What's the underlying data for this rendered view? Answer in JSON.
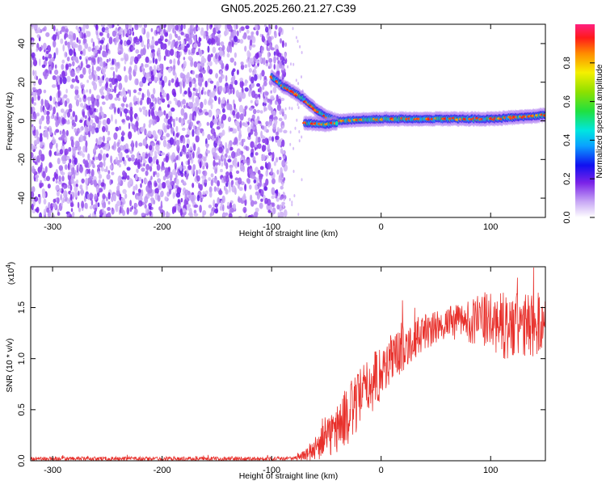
{
  "title": "GN05.2025.260.21.27.C39",
  "chart_data": [
    {
      "type": "heatmap",
      "xlabel": "Height of straight line (km)",
      "ylabel": "Frequency (Hz)",
      "xlim": [
        -320,
        150
      ],
      "ylim": [
        -50,
        50
      ],
      "x_ticks": [
        -300,
        -200,
        -100,
        0,
        100
      ],
      "y_ticks": [
        -40,
        -20,
        0,
        20,
        40
      ],
      "noise_region_x": [
        -320,
        -90
      ],
      "ridge": [
        {
          "x": -100,
          "f": 23
        },
        {
          "x": -90,
          "f": 18
        },
        {
          "x": -80,
          "f": 15
        },
        {
          "x": -70,
          "f": 11
        },
        {
          "x": -60,
          "f": 6
        },
        {
          "x": -50,
          "f": 2
        },
        {
          "x": -40,
          "f": 0
        },
        {
          "x": -20,
          "f": 0.5
        },
        {
          "x": 0,
          "f": 1
        },
        {
          "x": 50,
          "f": 1
        },
        {
          "x": 100,
          "f": 1
        },
        {
          "x": 130,
          "f": 2
        },
        {
          "x": 150,
          "f": 3
        }
      ],
      "lower_branch": [
        {
          "x": -70,
          "f": -1
        },
        {
          "x": -50,
          "f": -2
        },
        {
          "x": -40,
          "f": -1
        }
      ],
      "colorbar": {
        "label": "Normalized spectral amplitude",
        "ticks": [
          "0.0",
          "0.2",
          "0.4",
          "0.6",
          "0.8"
        ],
        "range": [
          0,
          1
        ]
      }
    },
    {
      "type": "line",
      "xlabel": "Height of straight line (km)",
      "ylabel": "SNR (10 * v/v)",
      "multiplier": "(x10",
      "multiplier_exp": "4",
      "multiplier_close": ")",
      "xlim": [
        -320,
        150
      ],
      "ylim": [
        0,
        1.9
      ],
      "x_ticks": [
        -300,
        -200,
        -100,
        0,
        100
      ],
      "y_ticks": [
        "0.0",
        "0.5",
        "1.0",
        "1.5"
      ],
      "line_color": "#e8302b",
      "envelope": [
        {
          "x": -320,
          "mean": 0.02,
          "noise": 0.02
        },
        {
          "x": -80,
          "mean": 0.02,
          "noise": 0.02
        },
        {
          "x": -70,
          "mean": 0.05,
          "noise": 0.05
        },
        {
          "x": -50,
          "mean": 0.2,
          "noise": 0.2
        },
        {
          "x": -30,
          "mean": 0.45,
          "noise": 0.3
        },
        {
          "x": -10,
          "mean": 0.75,
          "noise": 0.3
        },
        {
          "x": 10,
          "mean": 1.0,
          "noise": 0.25
        },
        {
          "x": 30,
          "mean": 1.2,
          "noise": 0.2
        },
        {
          "x": 60,
          "mean": 1.35,
          "noise": 0.15
        },
        {
          "x": 90,
          "mean": 1.38,
          "noise": 0.25
        },
        {
          "x": 120,
          "mean": 1.3,
          "noise": 0.35
        },
        {
          "x": 150,
          "mean": 1.35,
          "noise": 0.3
        }
      ]
    }
  ]
}
